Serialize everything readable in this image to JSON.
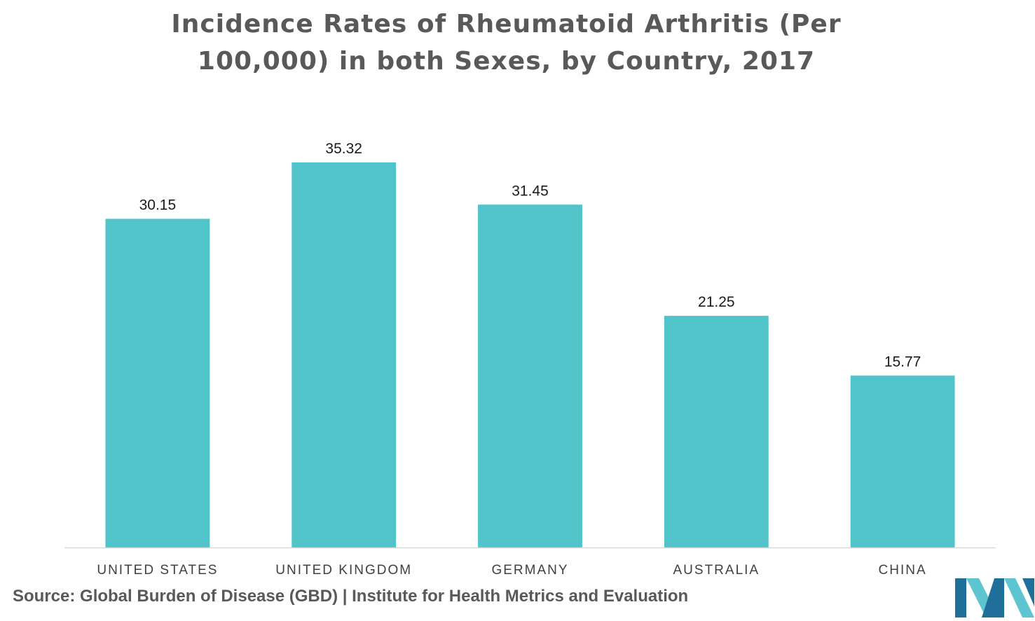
{
  "chart_data": {
    "type": "bar",
    "title": "Incidence Rates of Rheumatoid Arthritis (Per 100,000) in both Sexes, by Country, 2017",
    "categories": [
      "UNITED STATES",
      "UNITED KINGDOM",
      "GERMANY",
      "AUSTRALIA",
      "CHINA"
    ],
    "values": [
      30.15,
      35.32,
      31.45,
      21.25,
      15.77
    ],
    "value_labels": [
      "30.15",
      "35.32",
      "31.45",
      "21.25",
      "15.77"
    ],
    "xlabel": "",
    "ylabel": "",
    "ylim": [
      0,
      40
    ],
    "grid": false,
    "legend": "none",
    "bar_color": "#50c4c9",
    "axis_color": "#d9d9d9"
  },
  "source": "Source: Global Burden of Disease (GBD) | Institute for Health Metrics and Evaluation",
  "logo": {
    "icon": "mordor-intelligence-logo-icon",
    "colors": [
      "#1f6f9a",
      "#5ec5d0"
    ]
  }
}
